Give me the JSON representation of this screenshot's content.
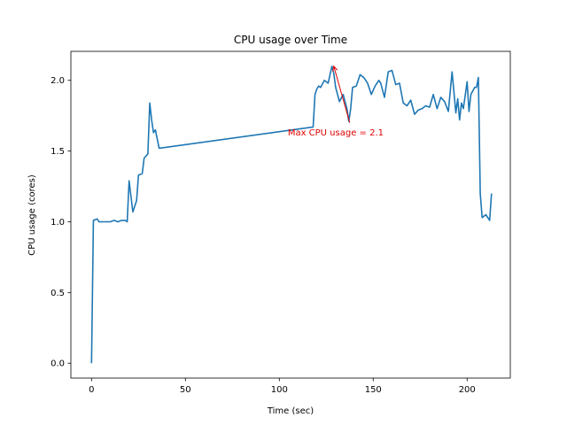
{
  "chart_data": {
    "type": "line",
    "title": "CPU usage over Time",
    "xlabel": "Time (sec)",
    "ylabel": "CPU usage (cores)",
    "xlim": [
      -11,
      223
    ],
    "ylim": [
      -0.105,
      2.205
    ],
    "xticks": [
      0,
      50,
      100,
      150,
      200
    ],
    "yticks": [
      0.0,
      0.5,
      1.0,
      1.5,
      2.0
    ],
    "grid": false,
    "series_color": "#1f77b4",
    "annotation_color": "#e00000",
    "annotation": {
      "text": "Max CPU usage = 2.1",
      "point": [
        129,
        2.1
      ],
      "text_anchor_at": [
        104.5,
        1.61
      ]
    },
    "series": [
      {
        "x": [
          0,
          1,
          3,
          4,
          6,
          8,
          10,
          12,
          14,
          16,
          18,
          19,
          20,
          22,
          24,
          25,
          27,
          28,
          30,
          31,
          32,
          33,
          34,
          36,
          118,
          119,
          120,
          121,
          122,
          124,
          126,
          128,
          129,
          130,
          132,
          134,
          136,
          137,
          138,
          139,
          141,
          143,
          145,
          147,
          149,
          151,
          153,
          154,
          156,
          158,
          160,
          162,
          164,
          166,
          168,
          170,
          172,
          174,
          176,
          178,
          180,
          182,
          184,
          186,
          188,
          190,
          192,
          194,
          195,
          196,
          197,
          198,
          200,
          201,
          202,
          204,
          205,
          206,
          207,
          208,
          210,
          212,
          213
        ],
        "values": [
          0.0,
          1.01,
          1.02,
          1.0,
          1.0,
          1.0,
          1.0,
          1.01,
          1.0,
          1.01,
          1.01,
          1.0,
          1.29,
          1.07,
          1.15,
          1.33,
          1.34,
          1.45,
          1.48,
          1.84,
          1.72,
          1.63,
          1.65,
          1.52,
          1.67,
          1.9,
          1.94,
          1.96,
          1.95,
          2.0,
          1.98,
          2.1,
          2.05,
          1.95,
          1.85,
          1.9,
          1.8,
          1.71,
          1.8,
          1.95,
          1.96,
          2.04,
          2.02,
          1.98,
          1.9,
          1.96,
          2.0,
          1.98,
          1.88,
          2.06,
          2.07,
          1.97,
          1.98,
          1.84,
          1.82,
          1.86,
          1.76,
          1.79,
          1.8,
          1.82,
          1.81,
          1.9,
          1.8,
          1.88,
          1.85,
          1.78,
          2.06,
          1.77,
          1.87,
          1.72,
          1.84,
          1.8,
          1.99,
          1.78,
          1.9,
          1.95,
          1.95,
          2.02,
          1.2,
          1.03,
          1.05,
          1.01,
          1.2
        ]
      }
    ]
  }
}
